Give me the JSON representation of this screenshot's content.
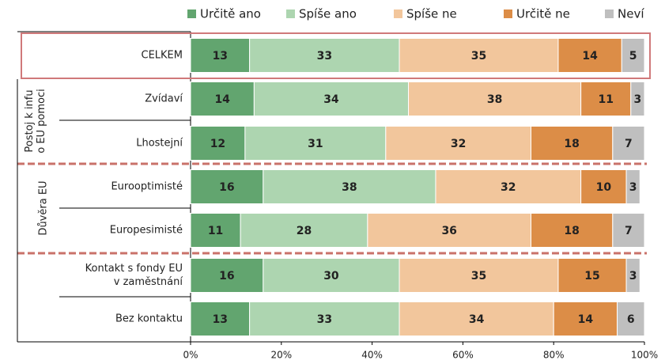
{
  "chart_data": {
    "type": "stacked-bar-horizontal",
    "categories": [
      "CELKEM",
      "Zvídaví",
      "Lhostejní",
      "Eurooptimisté",
      "Europesimisté",
      "Kontakt s fondy EU\nv zaměstnání",
      "Bez kontaktu"
    ],
    "groups": [
      "Postoj k infu\no EU pomoci",
      "Důvěra EU"
    ],
    "series": [
      {
        "name": "Určitě ano",
        "color": "#62a56f",
        "values": [
          13,
          14,
          12,
          16,
          11,
          16,
          13
        ]
      },
      {
        "name": "Spíše ano",
        "color": "#add5b0",
        "values": [
          33,
          34,
          31,
          38,
          28,
          30,
          33
        ]
      },
      {
        "name": "Spíše ne",
        "color": "#f2c69c",
        "values": [
          35,
          38,
          32,
          32,
          36,
          35,
          34
        ]
      },
      {
        "name": "Určitě ne",
        "color": "#dc8d47",
        "values": [
          14,
          11,
          18,
          10,
          18,
          15,
          14
        ]
      },
      {
        "name": "Neví",
        "color": "#bfbfbf",
        "values": [
          5,
          3,
          7,
          3,
          7,
          3,
          6
        ]
      }
    ],
    "xlim": [
      0,
      100
    ],
    "xticks": [
      {
        "value": 0,
        "label": "0%"
      },
      {
        "value": 20,
        "label": "20%"
      },
      {
        "value": 40,
        "label": "40%"
      },
      {
        "value": 60,
        "label": "60%"
      },
      {
        "value": 80,
        "label": "80%"
      },
      {
        "value": 100,
        "label": "100%"
      }
    ]
  }
}
